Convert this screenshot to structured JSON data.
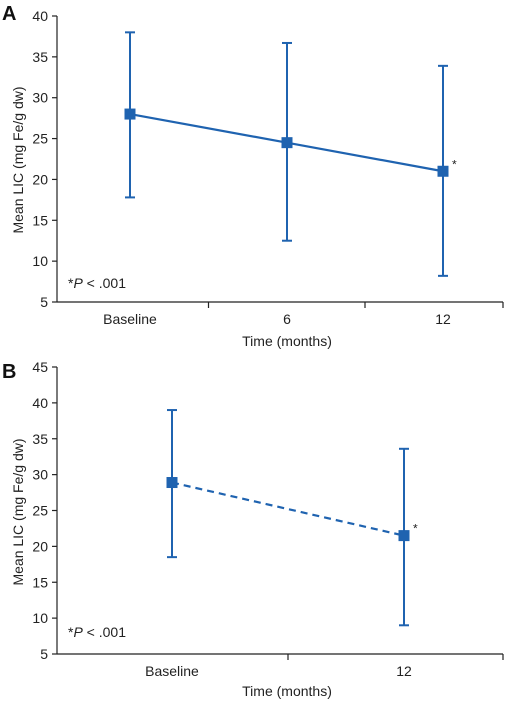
{
  "chart_data": [
    {
      "type": "line",
      "panel_label": "A",
      "categories": [
        "Baseline",
        "6",
        "12"
      ],
      "values": [
        28,
        24.5,
        21
      ],
      "error_upper": [
        38,
        36.7,
        33.9
      ],
      "error_lower": [
        17.8,
        12.5,
        8.2
      ],
      "significant": [
        false,
        false,
        true
      ],
      "line_style": "solid",
      "xlabel": "Time (months)",
      "ylabel": "Mean LIC (mg Fe/g dw)",
      "ylim": [
        5,
        40
      ],
      "yticks": [
        5,
        10,
        15,
        20,
        25,
        30,
        35,
        40
      ],
      "note": "*P < .001",
      "color": "#1f63b0"
    },
    {
      "type": "line",
      "panel_label": "B",
      "categories": [
        "Baseline",
        "12"
      ],
      "values": [
        28.9,
        21.5
      ],
      "error_upper": [
        39,
        33.6
      ],
      "error_lower": [
        18.5,
        9
      ],
      "significant": [
        false,
        true
      ],
      "line_style": "dashed",
      "xlabel": "Time (months)",
      "ylabel": "Mean LIC (mg Fe/g dw)",
      "ylim": [
        5,
        45
      ],
      "yticks": [
        5,
        10,
        15,
        20,
        25,
        30,
        35,
        40,
        45
      ],
      "note": "*P < .001",
      "color": "#1f63b0"
    }
  ]
}
